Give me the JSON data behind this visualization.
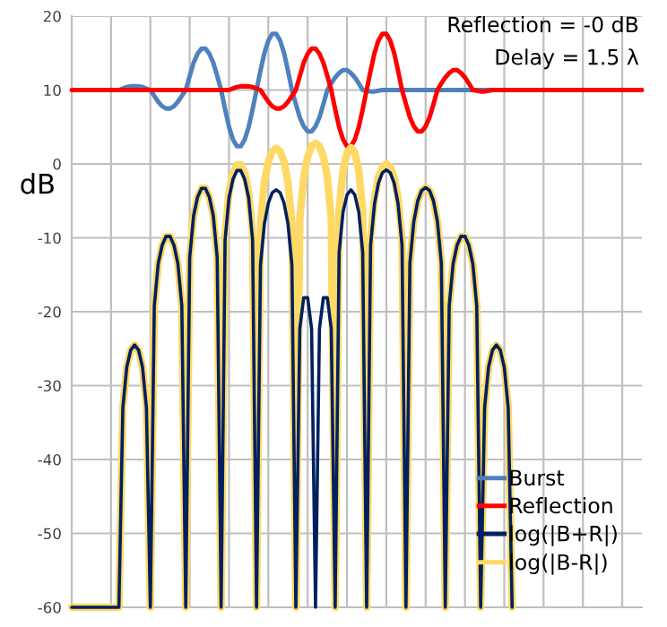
{
  "chart_data": {
    "type": "line",
    "categories": [
      null,
      null,
      null,
      null,
      null,
      null,
      null,
      null,
      null,
      null,
      null,
      null,
      null,
      null,
      null,
      null,
      null,
      null,
      null,
      null,
      null,
      null,
      null,
      null,
      null,
      null,
      null,
      null,
      null,
      null,
      null,
      null,
      null,
      null,
      null,
      null,
      null,
      null,
      null,
      null,
      null,
      null,
      null,
      null,
      null,
      null,
      null,
      null,
      null,
      null,
      null,
      null,
      null,
      null,
      null,
      null,
      null,
      null,
      null,
      null,
      null,
      null,
      null,
      null,
      null,
      null,
      null,
      null,
      null,
      null,
      null,
      null,
      null,
      null,
      null,
      null,
      null,
      null,
      null,
      null,
      null,
      null,
      null,
      null,
      null,
      null,
      null,
      null,
      null,
      null,
      null,
      null,
      null,
      null,
      null,
      null,
      null,
      null,
      null,
      null,
      null,
      null,
      null,
      null,
      null,
      null,
      null,
      null,
      null,
      null,
      null,
      null,
      null,
      null,
      null,
      null,
      null,
      null,
      null,
      null,
      null,
      null,
      null,
      null,
      null,
      null,
      null,
      null,
      null,
      null,
      null,
      null,
      null,
      null,
      null,
      null,
      null,
      null,
      null,
      null,
      null,
      null,
      null,
      null,
      null,
      null
    ],
    "series": [
      {
        "name": "Burst",
        "color": "#4f81bd",
        "values": [
          null,
          null,
          null,
          null,
          null,
          null,
          null,
          null,
          null,
          null,
          null,
          null,
          10,
          10.2,
          10.4,
          10.5,
          10.5,
          10.5,
          10.4,
          10.2,
          10,
          9.2,
          8.4,
          7.8,
          7.5,
          7.5,
          7.8,
          8.4,
          9.2,
          10,
          11.9,
          13.7,
          14.9,
          15.6,
          15.6,
          14.9,
          13.7,
          11.9,
          10,
          7.4,
          5.0,
          3.3,
          2.4,
          2.4,
          3.3,
          5.0,
          7.4,
          10,
          12.6,
          15.0,
          16.7,
          17.6,
          17.6,
          16.7,
          15.0,
          12.6,
          10,
          8.1,
          6.3,
          5.1,
          4.4,
          4.4,
          5.1,
          6.3,
          8.1,
          10,
          10.9,
          11.7,
          12.3,
          12.7,
          12.7,
          12.3,
          11.7,
          10.9,
          10,
          9.9,
          9.8,
          9.8,
          9.9,
          10,
          10,
          10,
          10,
          10,
          10,
          10,
          10,
          10,
          10,
          10,
          10,
          10,
          10,
          10,
          10,
          10,
          10,
          10,
          10,
          10,
          10,
          10,
          10,
          10,
          10,
          10,
          10,
          10,
          null,
          null,
          null,
          null,
          null,
          null,
          null,
          null,
          null,
          null,
          null,
          null,
          null,
          null,
          null,
          null,
          null,
          null,
          null,
          null,
          null,
          null,
          null,
          null,
          null,
          null,
          null,
          null,
          null,
          null,
          null,
          null,
          null,
          null,
          null,
          null,
          null,
          null
        ]
      },
      {
        "name": "Reflection",
        "color": "#ff0000",
        "values": [
          10,
          10,
          10,
          10,
          10,
          10,
          10,
          10,
          10,
          10,
          10,
          10,
          10,
          10,
          10,
          10,
          10,
          10,
          10,
          10,
          10,
          10,
          10,
          10,
          10,
          10,
          10,
          10,
          10,
          10,
          10,
          10,
          10,
          10,
          10,
          10,
          10,
          10,
          10,
          10,
          10,
          10.2,
          10.4,
          10.5,
          10.5,
          10.5,
          10.4,
          10.2,
          10,
          9.2,
          8.4,
          7.8,
          7.5,
          7.5,
          7.8,
          8.4,
          9.2,
          10,
          11.9,
          13.7,
          14.9,
          15.6,
          15.6,
          14.9,
          13.7,
          11.9,
          10,
          7.4,
          5.0,
          3.3,
          2.4,
          2.4,
          3.3,
          5.0,
          7.4,
          10,
          12.6,
          15.0,
          16.7,
          17.6,
          17.6,
          16.7,
          15.0,
          12.6,
          10,
          8.1,
          6.3,
          5.1,
          4.4,
          4.4,
          5.1,
          6.3,
          8.1,
          10,
          10.9,
          11.7,
          12.3,
          12.7,
          12.7,
          12.3,
          11.7,
          10.9,
          10,
          9.9,
          9.8,
          9.8,
          9.9,
          10,
          10,
          10,
          10,
          10,
          10,
          10,
          10,
          10,
          10,
          10,
          10,
          10,
          10,
          10,
          10,
          10,
          10,
          10,
          10,
          10,
          10,
          10,
          10,
          10,
          10,
          10,
          10,
          10,
          10,
          10,
          10,
          10,
          10,
          10,
          10,
          10,
          10,
          10
        ]
      },
      {
        "name": "log(|B+R|)",
        "color": "#002060",
        "values": [
          -60,
          -60,
          -60,
          -60,
          -60,
          -60,
          -60,
          -60,
          -60,
          -60,
          -60,
          -60,
          -60,
          -33.0,
          -27.5,
          -25.2,
          -24.5,
          -25.2,
          -27.5,
          -33.0,
          -60,
          -19.2,
          -13.5,
          -11.0,
          -9.8,
          -9.8,
          -11.0,
          -13.5,
          -19.2,
          -60,
          -12.7,
          -7.0,
          -4.5,
          -3.3,
          -3.3,
          -4.5,
          -7.0,
          -12.7,
          -60,
          -10.3,
          -4.6,
          -2.1,
          -0.9,
          -0.9,
          -2.1,
          -4.6,
          -10.3,
          -60,
          -13.7,
          -8.1,
          -5.3,
          -3.9,
          -3.5,
          -3.9,
          -5.3,
          -8.1,
          -13.7,
          -60,
          -22.3,
          -18.1,
          -18.1,
          -22.3,
          -60,
          -22.3,
          -18.1,
          -18.1,
          -22.3,
          -60,
          -12.0,
          -6.5,
          -4.2,
          -3.5,
          -4.2,
          -6.5,
          -12.0,
          -60,
          -11.0,
          -5.4,
          -2.6,
          -1.2,
          -0.8,
          -1.2,
          -2.6,
          -5.4,
          -11.0,
          -60,
          -13.4,
          -7.8,
          -5.0,
          -3.6,
          -3.2,
          -3.6,
          -5.0,
          -7.8,
          -13.4,
          -60,
          -19.2,
          -13.5,
          -11.0,
          -9.8,
          -9.8,
          -11.0,
          -13.5,
          -19.2,
          -60,
          -33.0,
          -27.5,
          -25.2,
          -24.5,
          -25.2,
          -27.5,
          -33.0,
          -60,
          null,
          null,
          null,
          null,
          null,
          null,
          null,
          null,
          null,
          null,
          null,
          null,
          null,
          null,
          null,
          null,
          null,
          null,
          null,
          null,
          null,
          null,
          null,
          null,
          null,
          null,
          null,
          null,
          null,
          null,
          null,
          null,
          null
        ]
      },
      {
        "name": "log(|B-R|)",
        "color": "#ffd966",
        "values": [
          -60,
          -60,
          -60,
          -60,
          -60,
          -60,
          -60,
          -60,
          -60,
          -60,
          -60,
          -60,
          -60,
          -33.0,
          -27.5,
          -25.2,
          -24.5,
          -25.2,
          -27.5,
          -33.0,
          -60,
          -19.2,
          -13.5,
          -11.0,
          -9.8,
          -9.8,
          -11.0,
          -13.5,
          -19.2,
          -60,
          -12.7,
          -7.0,
          -4.5,
          -3.3,
          -3.3,
          -4.5,
          -7.0,
          -12.7,
          -60,
          -9.5,
          -3.8,
          -1.3,
          -0.1,
          -0.1,
          -1.3,
          -3.8,
          -9.5,
          -60,
          -8.1,
          -2.5,
          0.3,
          1.7,
          2.1,
          1.7,
          0.3,
          -2.5,
          -8.1,
          -60,
          -7.4,
          -1.8,
          1.0,
          2.4,
          2.8,
          2.4,
          1.0,
          -1.8,
          -7.4,
          -60,
          -6.3,
          -0.8,
          1.5,
          2.2,
          1.5,
          -0.8,
          -6.3,
          -60,
          -10.2,
          -4.6,
          -1.8,
          -0.4,
          0,
          -0.4,
          -1.8,
          -4.6,
          -10.2,
          -60,
          -13.4,
          -7.8,
          -5.0,
          -3.6,
          -3.2,
          -3.6,
          -5.0,
          -7.8,
          -13.4,
          -60,
          -19.2,
          -13.5,
          -11.0,
          -9.8,
          -9.8,
          -11.0,
          -13.5,
          -19.2,
          -60,
          -33.0,
          -27.5,
          -25.2,
          -24.5,
          -25.2,
          -27.5,
          -33.0,
          -60,
          null,
          null,
          null,
          null,
          null,
          null,
          null,
          null,
          null,
          null,
          null,
          null,
          null,
          null,
          null,
          null,
          null,
          null,
          null,
          null,
          null,
          null,
          null,
          null,
          null,
          null,
          null,
          null,
          null,
          null,
          null,
          null,
          null
        ]
      }
    ],
    "ylim": [
      -60,
      20
    ],
    "yticks": [
      -60,
      -50,
      -40,
      -30,
      -20,
      -10,
      0,
      10,
      20
    ],
    "ylabel": "dB",
    "annotations": [
      "Reflection = -0 dB",
      "Delay = 1.5 λ"
    ],
    "grid": true,
    "legend": "bottom right",
    "tick_labels": "y"
  }
}
